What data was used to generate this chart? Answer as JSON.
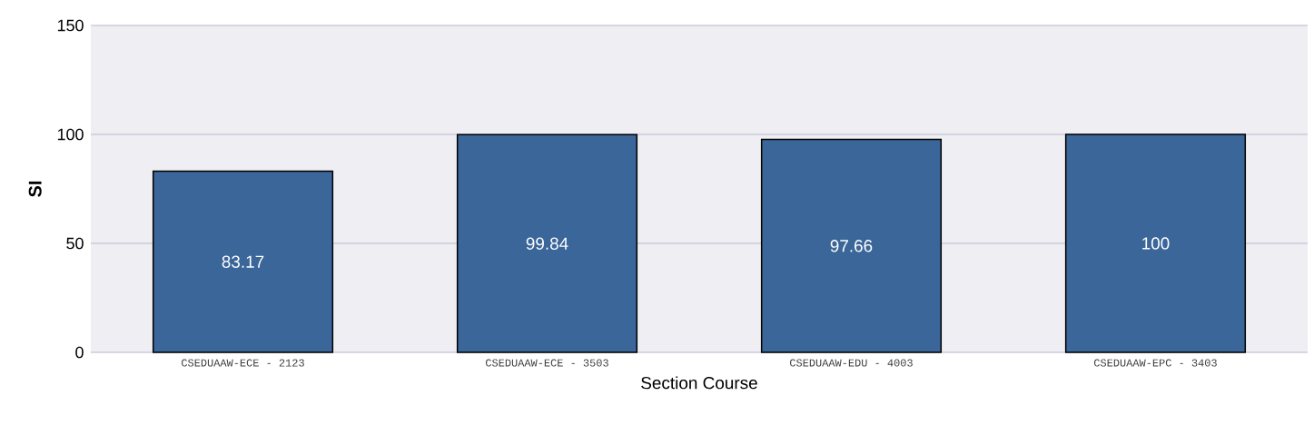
{
  "chart_data": {
    "type": "bar",
    "xlabel": "Section Course",
    "ylabel": "SI",
    "categories": [
      "CSEDUAAW-ECE - 2123",
      "CSEDUAAW-ECE - 3503",
      "CSEDUAAW-EDU - 4003",
      "CSEDUAAW-EPC - 3403"
    ],
    "values": [
      83.17,
      99.84,
      97.66,
      100
    ],
    "color": "#3b6699",
    "ylim": [
      0,
      150
    ],
    "yticks": [
      0,
      50,
      100,
      150
    ],
    "grid": "y",
    "data_labels": true
  }
}
